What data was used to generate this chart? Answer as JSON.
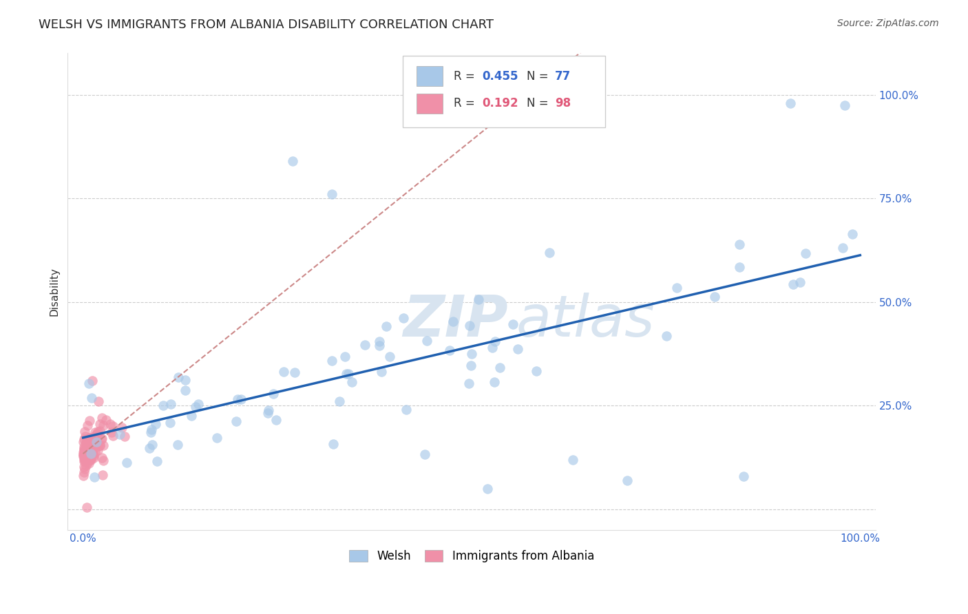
{
  "title": "WELSH VS IMMIGRANTS FROM ALBANIA DISABILITY CORRELATION CHART",
  "source": "Source: ZipAtlas.com",
  "ylabel": "Disability",
  "xlim": [
    -0.02,
    1.02
  ],
  "ylim": [
    -0.05,
    1.1
  ],
  "y_ticks": [
    0.0,
    0.25,
    0.5,
    0.75,
    1.0
  ],
  "y_tick_labels": [
    "",
    "25.0%",
    "50.0%",
    "75.0%",
    "100.0%"
  ],
  "legend_blue_label": "Welsh",
  "legend_pink_label": "Immigrants from Albania",
  "r_blue": 0.455,
  "n_blue": 77,
  "r_pink": 0.192,
  "n_pink": 98,
  "blue_color": "#a8c8e8",
  "blue_line_color": "#2060b0",
  "pink_color": "#f090a8",
  "pink_line_color": "#e06070",
  "watermark_color": "#d8e4f0",
  "background_color": "#ffffff",
  "title_fontsize": 13,
  "axis_tick_fontsize": 11,
  "legend_fontsize": 13
}
